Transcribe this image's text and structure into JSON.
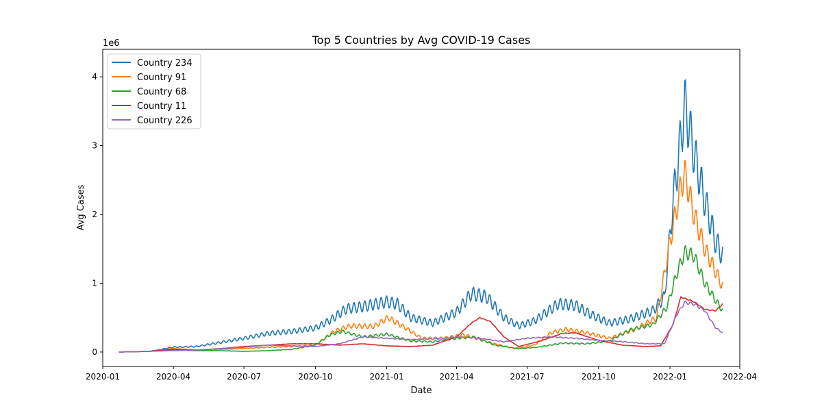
{
  "chart_data": {
    "type": "line",
    "title": "Top 5 Countries by Avg COVID-19 Cases",
    "xlabel": "Date",
    "ylabel": "Avg Cases",
    "y_offset_label": "1e6",
    "y_multiplier": 1000000,
    "xlim": [
      "2020-01-01",
      "2022-04-01"
    ],
    "ylim": [
      -0.21,
      4.4
    ],
    "x_ticks": [
      "2020-01",
      "2020-04",
      "2020-07",
      "2020-10",
      "2021-01",
      "2021-04",
      "2021-07",
      "2021-10",
      "2022-01",
      "2022-04"
    ],
    "y_ticks": [
      0,
      1,
      2,
      3,
      4
    ],
    "grid": false,
    "legend_position": "upper-left",
    "series": [
      {
        "name": "Country 234",
        "color": "#1f77b4",
        "wiggle": 0.12,
        "points": [
          [
            "2020-01-22",
            0.0
          ],
          [
            "2020-03-01",
            0.01
          ],
          [
            "2020-04-01",
            0.07
          ],
          [
            "2020-05-01",
            0.08
          ],
          [
            "2020-06-01",
            0.14
          ],
          [
            "2020-07-01",
            0.2
          ],
          [
            "2020-08-01",
            0.27
          ],
          [
            "2020-09-01",
            0.3
          ],
          [
            "2020-10-01",
            0.35
          ],
          [
            "2020-10-20",
            0.46
          ],
          [
            "2020-11-10",
            0.63
          ],
          [
            "2020-12-01",
            0.66
          ],
          [
            "2021-01-01",
            0.73
          ],
          [
            "2021-01-15",
            0.7
          ],
          [
            "2021-02-01",
            0.5
          ],
          [
            "2021-03-01",
            0.42
          ],
          [
            "2021-04-01",
            0.58
          ],
          [
            "2021-04-20",
            0.85
          ],
          [
            "2021-05-10",
            0.8
          ],
          [
            "2021-06-01",
            0.5
          ],
          [
            "2021-06-20",
            0.38
          ],
          [
            "2021-07-10",
            0.45
          ],
          [
            "2021-08-10",
            0.7
          ],
          [
            "2021-09-01",
            0.68
          ],
          [
            "2021-09-20",
            0.55
          ],
          [
            "2021-10-15",
            0.42
          ],
          [
            "2021-11-10",
            0.48
          ],
          [
            "2021-12-10",
            0.6
          ],
          [
            "2021-12-25",
            0.8
          ],
          [
            "2022-01-05",
            2.2
          ],
          [
            "2022-01-15",
            3.1
          ],
          [
            "2022-01-20",
            3.6
          ],
          [
            "2022-02-01",
            2.9
          ],
          [
            "2022-02-15",
            2.2
          ],
          [
            "2022-03-01",
            1.6
          ],
          [
            "2022-03-10",
            1.4
          ]
        ]
      },
      {
        "name": "Country 91",
        "color": "#ff7f0e",
        "wiggle": 0.09,
        "points": [
          [
            "2020-01-22",
            0.0
          ],
          [
            "2020-03-01",
            0.01
          ],
          [
            "2020-04-01",
            0.05
          ],
          [
            "2020-05-01",
            0.03
          ],
          [
            "2020-06-01",
            0.04
          ],
          [
            "2020-07-01",
            0.05
          ],
          [
            "2020-08-01",
            0.07
          ],
          [
            "2020-09-01",
            0.08
          ],
          [
            "2020-10-01",
            0.1
          ],
          [
            "2020-10-25",
            0.3
          ],
          [
            "2020-11-15",
            0.38
          ],
          [
            "2020-12-15",
            0.37
          ],
          [
            "2021-01-03",
            0.5
          ],
          [
            "2021-01-25",
            0.35
          ],
          [
            "2021-02-15",
            0.2
          ],
          [
            "2021-03-15",
            0.2
          ],
          [
            "2021-04-10",
            0.25
          ],
          [
            "2021-05-01",
            0.18
          ],
          [
            "2021-05-20",
            0.12
          ],
          [
            "2021-06-15",
            0.05
          ],
          [
            "2021-07-10",
            0.1
          ],
          [
            "2021-08-01",
            0.28
          ],
          [
            "2021-08-20",
            0.33
          ],
          [
            "2021-09-15",
            0.28
          ],
          [
            "2021-10-15",
            0.2
          ],
          [
            "2021-11-15",
            0.32
          ],
          [
            "2021-12-15",
            0.5
          ],
          [
            "2022-01-01",
            1.6
          ],
          [
            "2022-01-15",
            2.4
          ],
          [
            "2022-01-20",
            2.6
          ],
          [
            "2022-02-01",
            2.0
          ],
          [
            "2022-02-15",
            1.5
          ],
          [
            "2022-03-10",
            0.95
          ]
        ]
      },
      {
        "name": "Country 68",
        "color": "#2ca02c",
        "wiggle": 0.07,
        "points": [
          [
            "2020-01-22",
            0.0
          ],
          [
            "2020-03-01",
            0.01
          ],
          [
            "2020-04-01",
            0.03
          ],
          [
            "2020-05-01",
            0.02
          ],
          [
            "2020-06-01",
            0.02
          ],
          [
            "2020-07-01",
            0.01
          ],
          [
            "2020-08-01",
            0.02
          ],
          [
            "2020-09-01",
            0.04
          ],
          [
            "2020-10-01",
            0.1
          ],
          [
            "2020-10-20",
            0.25
          ],
          [
            "2020-11-05",
            0.3
          ],
          [
            "2020-12-01",
            0.22
          ],
          [
            "2021-01-01",
            0.26
          ],
          [
            "2021-02-01",
            0.16
          ],
          [
            "2021-03-01",
            0.15
          ],
          [
            "2021-04-01",
            0.2
          ],
          [
            "2021-04-25",
            0.22
          ],
          [
            "2021-05-20",
            0.1
          ],
          [
            "2021-06-20",
            0.05
          ],
          [
            "2021-07-15",
            0.07
          ],
          [
            "2021-08-15",
            0.13
          ],
          [
            "2021-09-15",
            0.12
          ],
          [
            "2021-10-15",
            0.16
          ],
          [
            "2021-11-10",
            0.32
          ],
          [
            "2021-12-10",
            0.4
          ],
          [
            "2021-12-28",
            0.65
          ],
          [
            "2022-01-10",
            1.15
          ],
          [
            "2022-01-20",
            1.45
          ],
          [
            "2022-02-01",
            1.4
          ],
          [
            "2022-02-15",
            1.0
          ],
          [
            "2022-03-01",
            0.75
          ],
          [
            "2022-03-10",
            0.6
          ]
        ]
      },
      {
        "name": "Country 11",
        "color": "#d62728",
        "wiggle": 0.01,
        "points": [
          [
            "2020-01-22",
            0.0
          ],
          [
            "2020-03-01",
            0.01
          ],
          [
            "2020-04-01",
            0.04
          ],
          [
            "2020-05-01",
            0.03
          ],
          [
            "2020-06-01",
            0.05
          ],
          [
            "2020-07-01",
            0.08
          ],
          [
            "2020-08-01",
            0.1
          ],
          [
            "2020-09-01",
            0.12
          ],
          [
            "2020-10-01",
            0.12
          ],
          [
            "2020-11-01",
            0.1
          ],
          [
            "2020-12-01",
            0.12
          ],
          [
            "2021-01-01",
            0.09
          ],
          [
            "2021-02-01",
            0.08
          ],
          [
            "2021-03-01",
            0.1
          ],
          [
            "2021-04-01",
            0.22
          ],
          [
            "2021-04-20",
            0.42
          ],
          [
            "2021-05-01",
            0.5
          ],
          [
            "2021-05-15",
            0.44
          ],
          [
            "2021-06-01",
            0.22
          ],
          [
            "2021-06-20",
            0.08
          ],
          [
            "2021-07-15",
            0.15
          ],
          [
            "2021-08-15",
            0.27
          ],
          [
            "2021-09-01",
            0.28
          ],
          [
            "2021-10-01",
            0.17
          ],
          [
            "2021-11-01",
            0.1
          ],
          [
            "2021-12-01",
            0.08
          ],
          [
            "2021-12-20",
            0.09
          ],
          [
            "2022-01-05",
            0.4
          ],
          [
            "2022-01-15",
            0.8
          ],
          [
            "2022-02-01",
            0.73
          ],
          [
            "2022-02-15",
            0.62
          ],
          [
            "2022-03-01",
            0.6
          ],
          [
            "2022-03-10",
            0.7
          ]
        ]
      },
      {
        "name": "Country 226",
        "color": "#9467bd",
        "wiggle": 0.03,
        "points": [
          [
            "2020-01-22",
            0.0
          ],
          [
            "2020-03-01",
            0.01
          ],
          [
            "2020-04-01",
            0.02
          ],
          [
            "2020-05-01",
            0.03
          ],
          [
            "2020-06-01",
            0.05
          ],
          [
            "2020-07-01",
            0.07
          ],
          [
            "2020-08-01",
            0.1
          ],
          [
            "2020-09-01",
            0.09
          ],
          [
            "2020-10-01",
            0.08
          ],
          [
            "2020-11-01",
            0.12
          ],
          [
            "2020-12-01",
            0.22
          ],
          [
            "2021-01-01",
            0.2
          ],
          [
            "2021-02-01",
            0.18
          ],
          [
            "2021-03-01",
            0.19
          ],
          [
            "2021-04-01",
            0.22
          ],
          [
            "2021-05-01",
            0.2
          ],
          [
            "2021-06-01",
            0.15
          ],
          [
            "2021-07-01",
            0.2
          ],
          [
            "2021-08-01",
            0.22
          ],
          [
            "2021-09-01",
            0.2
          ],
          [
            "2021-10-01",
            0.17
          ],
          [
            "2021-11-01",
            0.15
          ],
          [
            "2021-12-01",
            0.12
          ],
          [
            "2021-12-25",
            0.12
          ],
          [
            "2022-01-10",
            0.55
          ],
          [
            "2022-01-20",
            0.72
          ],
          [
            "2022-02-01",
            0.7
          ],
          [
            "2022-02-15",
            0.6
          ],
          [
            "2022-03-01",
            0.35
          ],
          [
            "2022-03-10",
            0.28
          ]
        ]
      }
    ]
  }
}
